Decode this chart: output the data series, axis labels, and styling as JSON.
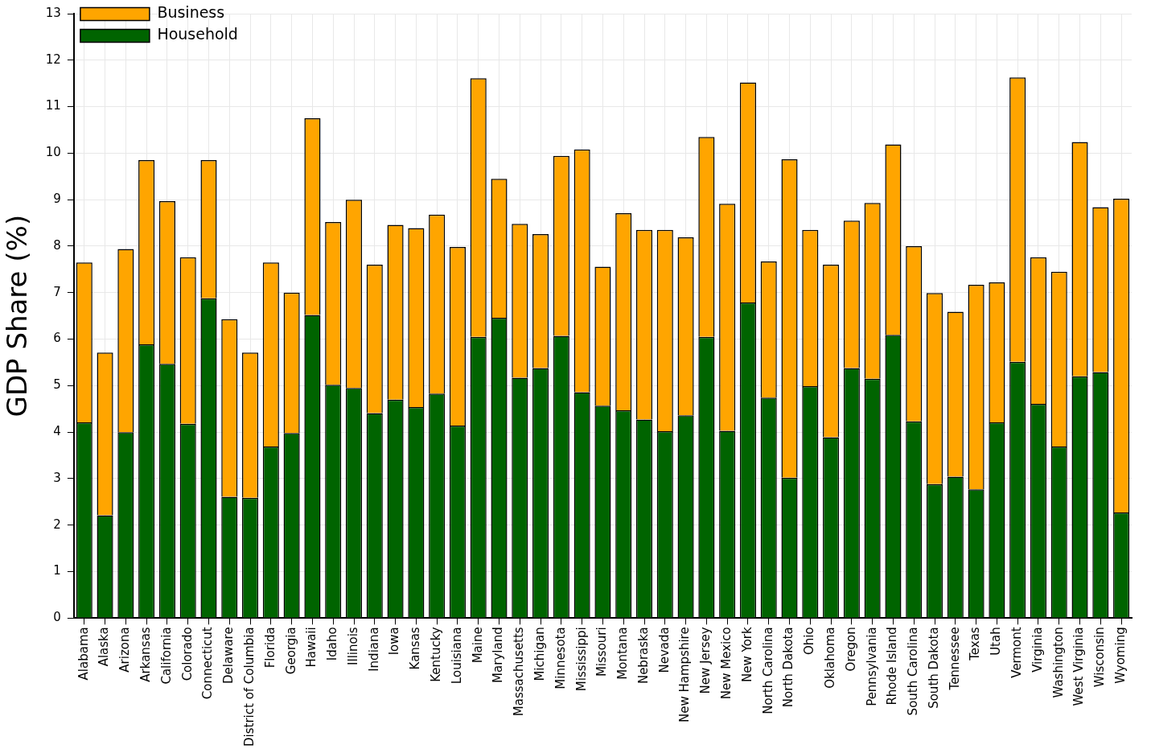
{
  "chart_data": {
    "type": "bar",
    "stacked": true,
    "ylabel": "GDP Share (%)",
    "categories": [
      "Alabama",
      "Alaska",
      "Arizona",
      "Arkansas",
      "California",
      "Colorado",
      "Connecticut",
      "Delaware",
      "District of Columbia",
      "Florida",
      "Georgia",
      "Hawaii",
      "Idaho",
      "Illinois",
      "Indiana",
      "Iowa",
      "Kansas",
      "Kentucky",
      "Louisiana",
      "Maine",
      "Maryland",
      "Massachusetts",
      "Michigan",
      "Minnesota",
      "Mississippi",
      "Missouri",
      "Montana",
      "Nebraska",
      "Nevada",
      "New Hampshire",
      "New Jersey",
      "New Mexico",
      "New York",
      "North Carolina",
      "North Dakota",
      "Ohio",
      "Oklahoma",
      "Oregon",
      "Pennsylvania",
      "Rhode Island",
      "South Carolina",
      "South Dakota",
      "Tennessee",
      "Texas",
      "Utah",
      "Vermont",
      "Virginia",
      "Washington",
      "West Virginia",
      "Wisconsin",
      "Wyoming"
    ],
    "series": [
      {
        "name": "Household",
        "color": "#006400",
        "values": [
          4.21,
          2.21,
          4.0,
          5.89,
          5.47,
          4.18,
          6.88,
          2.61,
          2.59,
          3.69,
          3.98,
          6.52,
          5.02,
          4.95,
          4.41,
          4.7,
          4.54,
          4.83,
          4.14,
          6.05,
          6.46,
          5.17,
          5.38,
          6.07,
          4.86,
          4.57,
          4.47,
          4.27,
          4.02,
          4.36,
          6.05,
          4.03,
          6.79,
          4.74,
          3.02,
          4.99,
          3.89,
          5.38,
          5.15,
          6.09,
          4.23,
          2.88,
          3.04,
          2.77,
          4.21,
          5.51,
          4.61,
          3.69,
          5.2,
          5.29,
          2.27
        ]
      },
      {
        "name": "Business",
        "color": "#ffa500",
        "values": [
          3.44,
          3.5,
          3.94,
          3.96,
          3.5,
          3.58,
          2.97,
          3.82,
          3.12,
          3.96,
          3.02,
          4.23,
          3.5,
          4.05,
          3.19,
          3.76,
          3.85,
          3.85,
          3.84,
          5.56,
          2.99,
          3.31,
          2.88,
          3.87,
          5.22,
          2.99,
          4.24,
          4.08,
          4.33,
          3.83,
          4.3,
          4.88,
          4.73,
          2.93,
          6.85,
          3.36,
          3.71,
          3.17,
          3.78,
          4.1,
          3.77,
          4.11,
          3.55,
          4.4,
          3.01,
          6.12,
          3.15,
          3.76,
          5.04,
          3.55,
          6.75
        ]
      }
    ],
    "ylim": [
      0,
      13
    ],
    "yticks": [
      0,
      1,
      2,
      3,
      4,
      5,
      6,
      7,
      8,
      9,
      10,
      11,
      12,
      13
    ],
    "grid": true,
    "legend": "top left"
  }
}
